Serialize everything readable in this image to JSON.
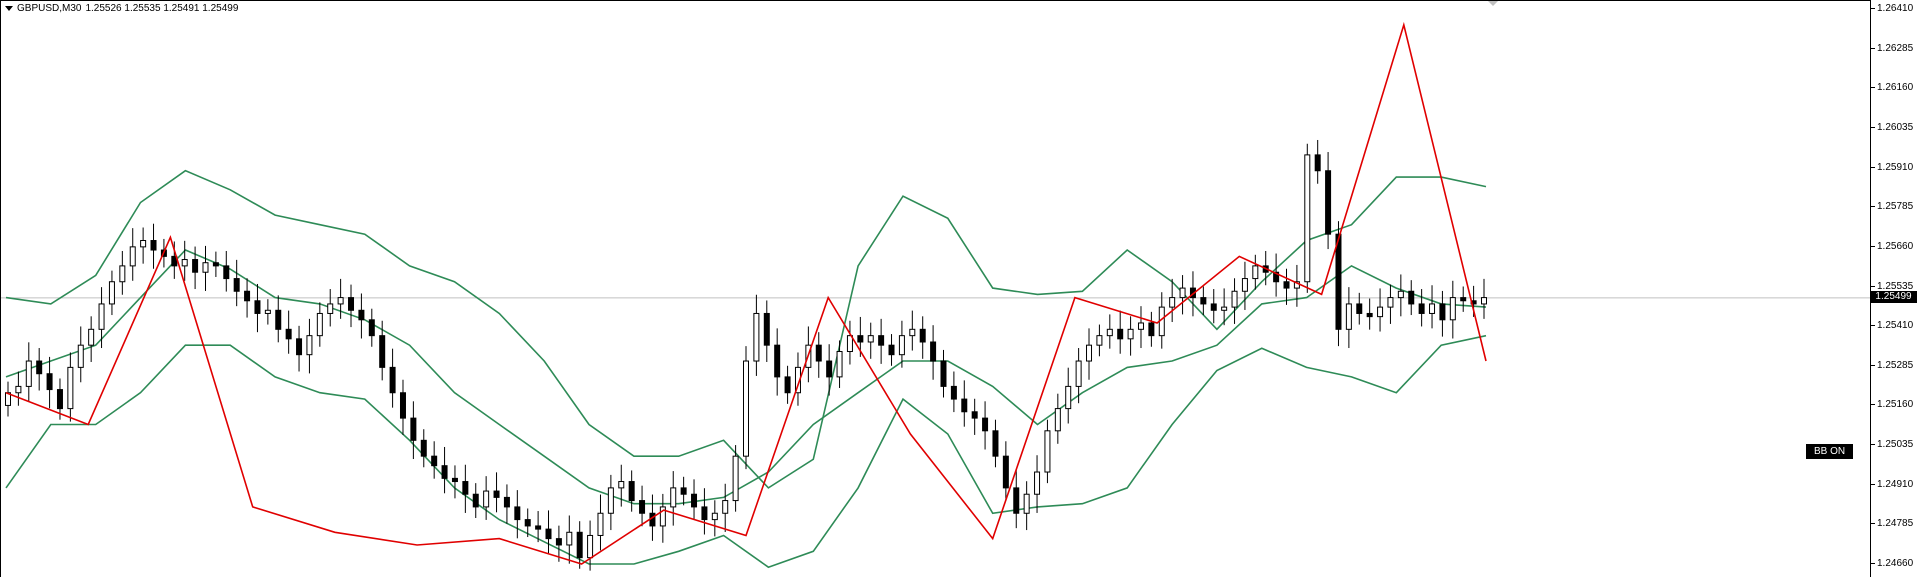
{
  "header": {
    "symbol": "GBPUSD,M30",
    "ohlc": "1.25526 1.25535 1.25491 1.25499"
  },
  "badge": {
    "label": "BB ON"
  },
  "current_price": "1.25499",
  "colors": {
    "zigzag": "#e00000",
    "bands": "#2e8b57",
    "candle_up": "#ffffff",
    "candle_down": "#000000",
    "price_line": "#c0c0c0"
  },
  "chart_data": {
    "type": "candlestick",
    "symbol": "GBPUSD",
    "timeframe": "M30",
    "ylim": [
      1.246,
      1.2641
    ],
    "yticks": [
      "1.26410",
      "1.26285",
      "1.26160",
      "1.26035",
      "1.25910",
      "1.25785",
      "1.25660",
      "1.25535",
      "1.25410",
      "1.25285",
      "1.25160",
      "1.25035",
      "1.24910",
      "1.24785",
      "1.24660"
    ],
    "current_price": 1.25499,
    "grid": false,
    "zigzag": [
      1.252,
      1.251,
      1.2569,
      1.2484,
      1.2476,
      1.2472,
      1.2474,
      1.2466,
      1.2483,
      1.2475,
      1.255,
      1.2507,
      1.2474,
      1.255,
      1.2542,
      1.2563,
      1.2551,
      1.2636,
      1.253
    ],
    "closes": [
      1.252,
      1.2522,
      1.253,
      1.2526,
      1.2521,
      1.2515,
      1.2528,
      1.2535,
      1.254,
      1.2548,
      1.2555,
      1.256,
      1.2566,
      1.2568,
      1.2565,
      1.2563,
      1.256,
      1.2562,
      1.2558,
      1.2561,
      1.256,
      1.2556,
      1.2552,
      1.2549,
      1.2545,
      1.2546,
      1.254,
      1.2537,
      1.2532,
      1.2538,
      1.2545,
      1.2548,
      1.255,
      1.2546,
      1.2543,
      1.2538,
      1.2528,
      1.252,
      1.2512,
      1.2505,
      1.25,
      1.2497,
      1.2493,
      1.2492,
      1.2488,
      1.2484,
      1.2489,
      1.2487,
      1.2484,
      1.248,
      1.2478,
      1.2477,
      1.2474,
      1.2472,
      1.2476,
      1.2468,
      1.2475,
      1.2482,
      1.249,
      1.2492,
      1.2486,
      1.2482,
      1.2478,
      1.2484,
      1.249,
      1.2488,
      1.2484,
      1.248,
      1.2482,
      1.2486,
      1.25,
      1.253,
      1.2545,
      1.2535,
      1.2525,
      1.252,
      1.2528,
      1.2535,
      1.253,
      1.2525,
      1.2533,
      1.2538,
      1.2536,
      1.2538,
      1.2535,
      1.2532,
      1.2538,
      1.254,
      1.2536,
      1.253,
      1.2522,
      1.2518,
      1.2514,
      1.2512,
      1.2508,
      1.25,
      1.249,
      1.2482,
      1.2488,
      1.2495,
      1.2508,
      1.2515,
      1.2522,
      1.253,
      1.2535,
      1.2538,
      1.254,
      1.2537,
      1.254,
      1.2542,
      1.2538,
      1.2547,
      1.255,
      1.2553,
      1.255,
      1.2548,
      1.2546,
      1.2547,
      1.2552,
      1.2556,
      1.256,
      1.2558,
      1.2555,
      1.2553,
      1.2555,
      1.2595,
      1.259,
      1.257,
      1.254,
      1.2548,
      1.2545,
      1.2544,
      1.2547,
      1.255,
      1.2552,
      1.2548,
      1.2545,
      1.2548,
      1.2543,
      1.255,
      1.2549,
      1.2548,
      1.255
    ],
    "bollinger": {
      "upper": [
        1.255,
        1.2548,
        1.2557,
        1.258,
        1.259,
        1.2584,
        1.2576,
        1.2573,
        1.257,
        1.256,
        1.2555,
        1.2545,
        1.253,
        1.251,
        1.25,
        1.25,
        1.2505,
        1.249,
        1.2499,
        1.256,
        1.2582,
        1.2575,
        1.2553,
        1.2551,
        1.2552,
        1.2565,
        1.2555,
        1.254,
        1.2555,
        1.2568,
        1.2573,
        1.2588,
        1.2588,
        1.2585
      ],
      "middle": [
        1.2525,
        1.253,
        1.2535,
        1.255,
        1.2565,
        1.2559,
        1.255,
        1.2548,
        1.2543,
        1.2535,
        1.252,
        1.251,
        1.25,
        1.249,
        1.2485,
        1.2485,
        1.2487,
        1.2495,
        1.251,
        1.252,
        1.253,
        1.253,
        1.2522,
        1.251,
        1.252,
        1.2528,
        1.253,
        1.2535,
        1.2548,
        1.255,
        1.256,
        1.2553,
        1.2548,
        1.2547
      ],
      "lower": [
        1.249,
        1.251,
        1.251,
        1.252,
        1.2535,
        1.2535,
        1.2525,
        1.252,
        1.2518,
        1.2505,
        1.249,
        1.248,
        1.2473,
        1.2466,
        1.2466,
        1.247,
        1.2475,
        1.2465,
        1.247,
        1.249,
        1.2518,
        1.2507,
        1.2482,
        1.2484,
        1.2485,
        1.249,
        1.251,
        1.2527,
        1.2534,
        1.2528,
        1.2525,
        1.252,
        1.2535,
        1.2538
      ]
    }
  }
}
